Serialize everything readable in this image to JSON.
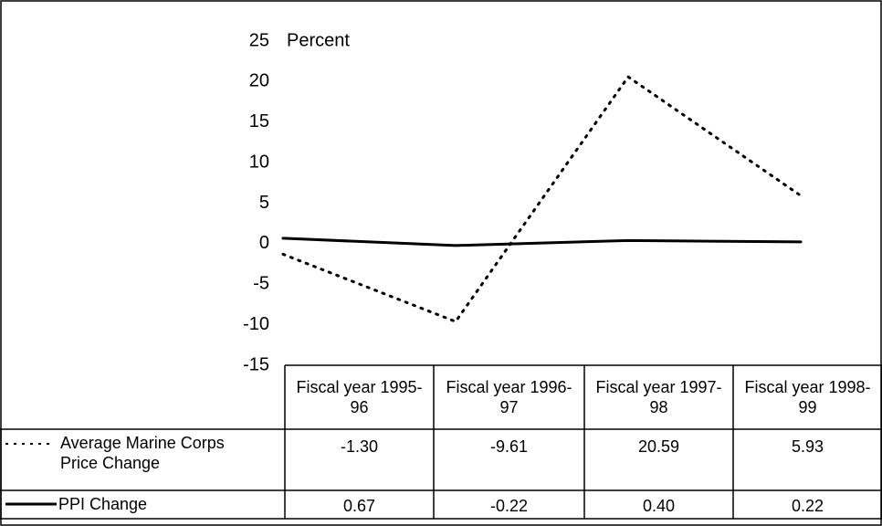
{
  "chart_data": {
    "type": "line",
    "y_label": "Percent",
    "categories": [
      "Fiscal year 1995-96",
      "Fiscal year 1996-97",
      "Fiscal year 1997-98",
      "Fiscal year 1998-99"
    ],
    "series": [
      {
        "name": "Average Marine Corps Price Change",
        "color": "#000000",
        "dash": "dotted",
        "values": [
          -1.3,
          -9.61,
          20.59,
          5.93
        ],
        "value_labels": [
          "-1.30",
          "-9.61",
          "20.59",
          "5.93"
        ]
      },
      {
        "name": "PPI Change",
        "color": "#000000",
        "dash": "solid",
        "values": [
          0.67,
          -0.22,
          0.4,
          0.22
        ],
        "value_labels": [
          "0.67",
          "-0.22",
          "0.40",
          "0.22"
        ]
      }
    ],
    "ylim": [
      -15,
      25
    ],
    "yticks": [
      25,
      20,
      15,
      10,
      5,
      0,
      -5,
      -10,
      -15
    ]
  }
}
